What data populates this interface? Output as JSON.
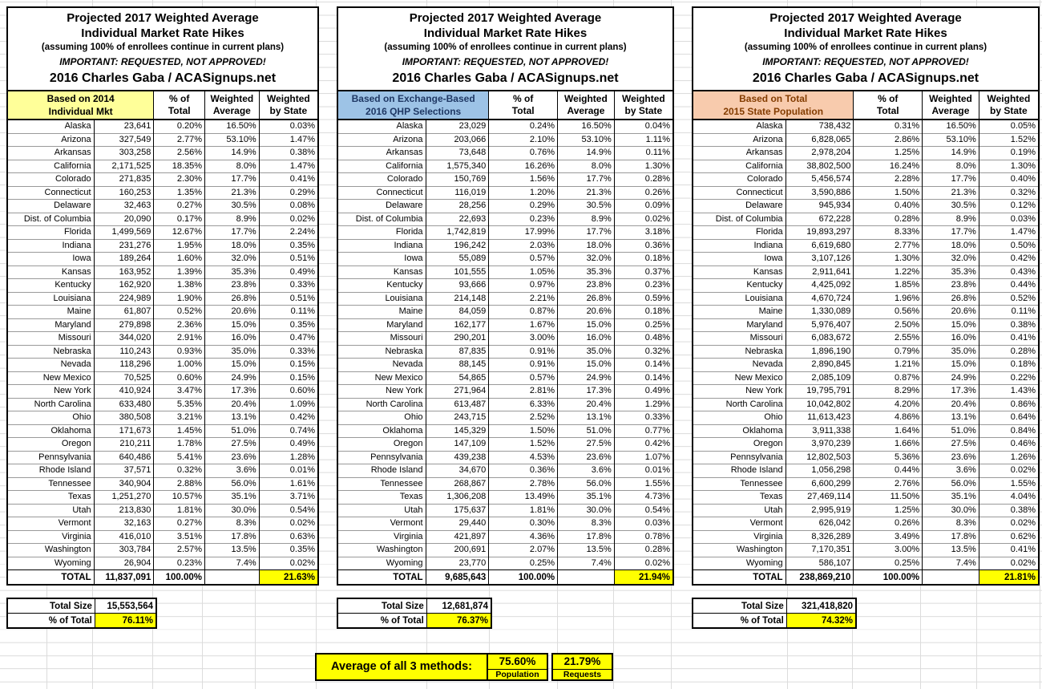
{
  "titles": {
    "line1": "Projected 2017 Weighted Average",
    "line2": "Individual Market Rate Hikes",
    "line3": "(assuming 100% of enrollees continue in current plans)",
    "line4": "IMPORTANT: REQUESTED, NOT APPROVED!",
    "line5": "2016 Charles Gaba / ACASignups.net"
  },
  "column_headers": {
    "pct_of_total": [
      "% of",
      "Total"
    ],
    "weighted_average": [
      "Weighted",
      "Average"
    ],
    "weighted_by_state": [
      "Weighted",
      "by State"
    ]
  },
  "colors": {
    "table1_header_bg": "#FFFF99",
    "table1_header_text": "#000000",
    "table2_header_bg": "#9DC3E6",
    "table2_header_text": "#1F3864",
    "table3_header_bg": "#F8CBAD",
    "table3_header_text": "#833C00",
    "highlight_yellow": "#FFFF00",
    "grid_line": "#DCDCDC"
  },
  "tables": [
    {
      "name": "based-on-2014-individual-mkt",
      "key_header": [
        "Based on 2014",
        "Individual Mkt"
      ],
      "header_bg": "#FFFF99",
      "header_text": "#000000",
      "rows": [
        [
          "Alaska",
          "23,641",
          "0.20%",
          "16.50%",
          "0.03%"
        ],
        [
          "Arizona",
          "327,549",
          "2.77%",
          "53.10%",
          "1.47%"
        ],
        [
          "Arkansas",
          "303,258",
          "2.56%",
          "14.9%",
          "0.38%"
        ],
        [
          "California",
          "2,171,525",
          "18.35%",
          "8.0%",
          "1.47%"
        ],
        [
          "Colorado",
          "271,835",
          "2.30%",
          "17.7%",
          "0.41%"
        ],
        [
          "Connecticut",
          "160,253",
          "1.35%",
          "21.3%",
          "0.29%"
        ],
        [
          "Delaware",
          "32,463",
          "0.27%",
          "30.5%",
          "0.08%"
        ],
        [
          "Dist. of Columbia",
          "20,090",
          "0.17%",
          "8.9%",
          "0.02%"
        ],
        [
          "Florida",
          "1,499,569",
          "12.67%",
          "17.7%",
          "2.24%"
        ],
        [
          "Indiana",
          "231,276",
          "1.95%",
          "18.0%",
          "0.35%"
        ],
        [
          "Iowa",
          "189,264",
          "1.60%",
          "32.0%",
          "0.51%"
        ],
        [
          "Kansas",
          "163,952",
          "1.39%",
          "35.3%",
          "0.49%"
        ],
        [
          "Kentucky",
          "162,920",
          "1.38%",
          "23.8%",
          "0.33%"
        ],
        [
          "Louisiana",
          "224,989",
          "1.90%",
          "26.8%",
          "0.51%"
        ],
        [
          "Maine",
          "61,807",
          "0.52%",
          "20.6%",
          "0.11%"
        ],
        [
          "Maryland",
          "279,898",
          "2.36%",
          "15.0%",
          "0.35%"
        ],
        [
          "Missouri",
          "344,020",
          "2.91%",
          "16.0%",
          "0.47%"
        ],
        [
          "Nebraska",
          "110,243",
          "0.93%",
          "35.0%",
          "0.33%"
        ],
        [
          "Nevada",
          "118,296",
          "1.00%",
          "15.0%",
          "0.15%"
        ],
        [
          "New Mexico",
          "70,525",
          "0.60%",
          "24.9%",
          "0.15%"
        ],
        [
          "New York",
          "410,924",
          "3.47%",
          "17.3%",
          "0.60%"
        ],
        [
          "North Carolina",
          "633,480",
          "5.35%",
          "20.4%",
          "1.09%"
        ],
        [
          "Ohio",
          "380,508",
          "3.21%",
          "13.1%",
          "0.42%"
        ],
        [
          "Oklahoma",
          "171,673",
          "1.45%",
          "51.0%",
          "0.74%"
        ],
        [
          "Oregon",
          "210,211",
          "1.78%",
          "27.5%",
          "0.49%"
        ],
        [
          "Pennsylvania",
          "640,486",
          "5.41%",
          "23.6%",
          "1.28%"
        ],
        [
          "Rhode Island",
          "37,571",
          "0.32%",
          "3.6%",
          "0.01%"
        ],
        [
          "Tennessee",
          "340,904",
          "2.88%",
          "56.0%",
          "1.61%"
        ],
        [
          "Texas",
          "1,251,270",
          "10.57%",
          "35.1%",
          "3.71%"
        ],
        [
          "Utah",
          "213,830",
          "1.81%",
          "30.0%",
          "0.54%"
        ],
        [
          "Vermont",
          "32,163",
          "0.27%",
          "8.3%",
          "0.02%"
        ],
        [
          "Virginia",
          "416,010",
          "3.51%",
          "17.8%",
          "0.63%"
        ],
        [
          "Washington",
          "303,784",
          "2.57%",
          "13.5%",
          "0.35%"
        ],
        [
          "Wyoming",
          "26,904",
          "0.23%",
          "7.4%",
          "0.02%"
        ]
      ],
      "total": [
        "TOTAL",
        "11,837,091",
        "100.00%",
        "",
        "21.63%"
      ],
      "summary": {
        "total_size_label": "Total Size",
        "total_size_value": "15,553,564",
        "pct_of_total_label": "% of Total",
        "pct_of_total_value": "76.11%"
      }
    },
    {
      "name": "based-on-exchange-based-2016-qhp-selections",
      "key_header": [
        "Based on Exchange-Based",
        "2016 QHP Selections"
      ],
      "header_bg": "#9DC3E6",
      "header_text": "#1F3864",
      "rows": [
        [
          "Alaska",
          "23,029",
          "0.24%",
          "16.50%",
          "0.04%"
        ],
        [
          "Arizona",
          "203,066",
          "2.10%",
          "53.10%",
          "1.11%"
        ],
        [
          "Arkansas",
          "73,648",
          "0.76%",
          "14.9%",
          "0.11%"
        ],
        [
          "California",
          "1,575,340",
          "16.26%",
          "8.0%",
          "1.30%"
        ],
        [
          "Colorado",
          "150,769",
          "1.56%",
          "17.7%",
          "0.28%"
        ],
        [
          "Connecticut",
          "116,019",
          "1.20%",
          "21.3%",
          "0.26%"
        ],
        [
          "Delaware",
          "28,256",
          "0.29%",
          "30.5%",
          "0.09%"
        ],
        [
          "Dist. of Columbia",
          "22,693",
          "0.23%",
          "8.9%",
          "0.02%"
        ],
        [
          "Florida",
          "1,742,819",
          "17.99%",
          "17.7%",
          "3.18%"
        ],
        [
          "Indiana",
          "196,242",
          "2.03%",
          "18.0%",
          "0.36%"
        ],
        [
          "Iowa",
          "55,089",
          "0.57%",
          "32.0%",
          "0.18%"
        ],
        [
          "Kansas",
          "101,555",
          "1.05%",
          "35.3%",
          "0.37%"
        ],
        [
          "Kentucky",
          "93,666",
          "0.97%",
          "23.8%",
          "0.23%"
        ],
        [
          "Louisiana",
          "214,148",
          "2.21%",
          "26.8%",
          "0.59%"
        ],
        [
          "Maine",
          "84,059",
          "0.87%",
          "20.6%",
          "0.18%"
        ],
        [
          "Maryland",
          "162,177",
          "1.67%",
          "15.0%",
          "0.25%"
        ],
        [
          "Missouri",
          "290,201",
          "3.00%",
          "16.0%",
          "0.48%"
        ],
        [
          "Nebraska",
          "87,835",
          "0.91%",
          "35.0%",
          "0.32%"
        ],
        [
          "Nevada",
          "88,145",
          "0.91%",
          "15.0%",
          "0.14%"
        ],
        [
          "New Mexico",
          "54,865",
          "0.57%",
          "24.9%",
          "0.14%"
        ],
        [
          "New York",
          "271,964",
          "2.81%",
          "17.3%",
          "0.49%"
        ],
        [
          "North Carolina",
          "613,487",
          "6.33%",
          "20.4%",
          "1.29%"
        ],
        [
          "Ohio",
          "243,715",
          "2.52%",
          "13.1%",
          "0.33%"
        ],
        [
          "Oklahoma",
          "145,329",
          "1.50%",
          "51.0%",
          "0.77%"
        ],
        [
          "Oregon",
          "147,109",
          "1.52%",
          "27.5%",
          "0.42%"
        ],
        [
          "Pennsylvania",
          "439,238",
          "4.53%",
          "23.6%",
          "1.07%"
        ],
        [
          "Rhode Island",
          "34,670",
          "0.36%",
          "3.6%",
          "0.01%"
        ],
        [
          "Tennessee",
          "268,867",
          "2.78%",
          "56.0%",
          "1.55%"
        ],
        [
          "Texas",
          "1,306,208",
          "13.49%",
          "35.1%",
          "4.73%"
        ],
        [
          "Utah",
          "175,637",
          "1.81%",
          "30.0%",
          "0.54%"
        ],
        [
          "Vermont",
          "29,440",
          "0.30%",
          "8.3%",
          "0.03%"
        ],
        [
          "Virginia",
          "421,897",
          "4.36%",
          "17.8%",
          "0.78%"
        ],
        [
          "Washington",
          "200,691",
          "2.07%",
          "13.5%",
          "0.28%"
        ],
        [
          "Wyoming",
          "23,770",
          "0.25%",
          "7.4%",
          "0.02%"
        ]
      ],
      "total": [
        "TOTAL",
        "9,685,643",
        "100.00%",
        "",
        "21.94%"
      ],
      "summary": {
        "total_size_label": "Total Size",
        "total_size_value": "12,681,874",
        "pct_of_total_label": "% of Total",
        "pct_of_total_value": "76.37%"
      }
    },
    {
      "name": "based-on-total-2015-state-population",
      "key_header": [
        "Based on Total",
        "2015 State Population"
      ],
      "header_bg": "#F8CBAD",
      "header_text": "#833C00",
      "rows": [
        [
          "Alaska",
          "738,432",
          "0.31%",
          "16.50%",
          "0.05%"
        ],
        [
          "Arizona",
          "6,828,065",
          "2.86%",
          "53.10%",
          "1.52%"
        ],
        [
          "Arkansas",
          "2,978,204",
          "1.25%",
          "14.9%",
          "0.19%"
        ],
        [
          "California",
          "38,802,500",
          "16.24%",
          "8.0%",
          "1.30%"
        ],
        [
          "Colorado",
          "5,456,574",
          "2.28%",
          "17.7%",
          "0.40%"
        ],
        [
          "Connecticut",
          "3,590,886",
          "1.50%",
          "21.3%",
          "0.32%"
        ],
        [
          "Delaware",
          "945,934",
          "0.40%",
          "30.5%",
          "0.12%"
        ],
        [
          "Dist. of Columbia",
          "672,228",
          "0.28%",
          "8.9%",
          "0.03%"
        ],
        [
          "Florida",
          "19,893,297",
          "8.33%",
          "17.7%",
          "1.47%"
        ],
        [
          "Indiana",
          "6,619,680",
          "2.77%",
          "18.0%",
          "0.50%"
        ],
        [
          "Iowa",
          "3,107,126",
          "1.30%",
          "32.0%",
          "0.42%"
        ],
        [
          "Kansas",
          "2,911,641",
          "1.22%",
          "35.3%",
          "0.43%"
        ],
        [
          "Kentucky",
          "4,425,092",
          "1.85%",
          "23.8%",
          "0.44%"
        ],
        [
          "Louisiana",
          "4,670,724",
          "1.96%",
          "26.8%",
          "0.52%"
        ],
        [
          "Maine",
          "1,330,089",
          "0.56%",
          "20.6%",
          "0.11%"
        ],
        [
          "Maryland",
          "5,976,407",
          "2.50%",
          "15.0%",
          "0.38%"
        ],
        [
          "Missouri",
          "6,083,672",
          "2.55%",
          "16.0%",
          "0.41%"
        ],
        [
          "Nebraska",
          "1,896,190",
          "0.79%",
          "35.0%",
          "0.28%"
        ],
        [
          "Nevada",
          "2,890,845",
          "1.21%",
          "15.0%",
          "0.18%"
        ],
        [
          "New Mexico",
          "2,085,109",
          "0.87%",
          "24.9%",
          "0.22%"
        ],
        [
          "New York",
          "19,795,791",
          "8.29%",
          "17.3%",
          "1.43%"
        ],
        [
          "North Carolina",
          "10,042,802",
          "4.20%",
          "20.4%",
          "0.86%"
        ],
        [
          "Ohio",
          "11,613,423",
          "4.86%",
          "13.1%",
          "0.64%"
        ],
        [
          "Oklahoma",
          "3,911,338",
          "1.64%",
          "51.0%",
          "0.84%"
        ],
        [
          "Oregon",
          "3,970,239",
          "1.66%",
          "27.5%",
          "0.46%"
        ],
        [
          "Pennsylvania",
          "12,802,503",
          "5.36%",
          "23.6%",
          "1.26%"
        ],
        [
          "Rhode Island",
          "1,056,298",
          "0.44%",
          "3.6%",
          "0.02%"
        ],
        [
          "Tennessee",
          "6,600,299",
          "2.76%",
          "56.0%",
          "1.55%"
        ],
        [
          "Texas",
          "27,469,114",
          "11.50%",
          "35.1%",
          "4.04%"
        ],
        [
          "Utah",
          "2,995,919",
          "1.25%",
          "30.0%",
          "0.38%"
        ],
        [
          "Vermont",
          "626,042",
          "0.26%",
          "8.3%",
          "0.02%"
        ],
        [
          "Virginia",
          "8,326,289",
          "3.49%",
          "17.8%",
          "0.62%"
        ],
        [
          "Washington",
          "7,170,351",
          "3.00%",
          "13.5%",
          "0.41%"
        ],
        [
          "Wyoming",
          "586,107",
          "0.25%",
          "7.4%",
          "0.02%"
        ]
      ],
      "total": [
        "TOTAL",
        "238,869,210",
        "100.00%",
        "",
        "21.81%"
      ],
      "summary": {
        "total_size_label": "Total Size",
        "total_size_value": "321,418,820",
        "pct_of_total_label": "% of Total",
        "pct_of_total_value": "74.32%"
      }
    }
  ],
  "footer": {
    "label": "Average of all 3 methods:",
    "values": [
      {
        "value": "75.60%",
        "caption": "Population"
      },
      {
        "value": "21.79%",
        "caption": "Requests"
      }
    ]
  }
}
